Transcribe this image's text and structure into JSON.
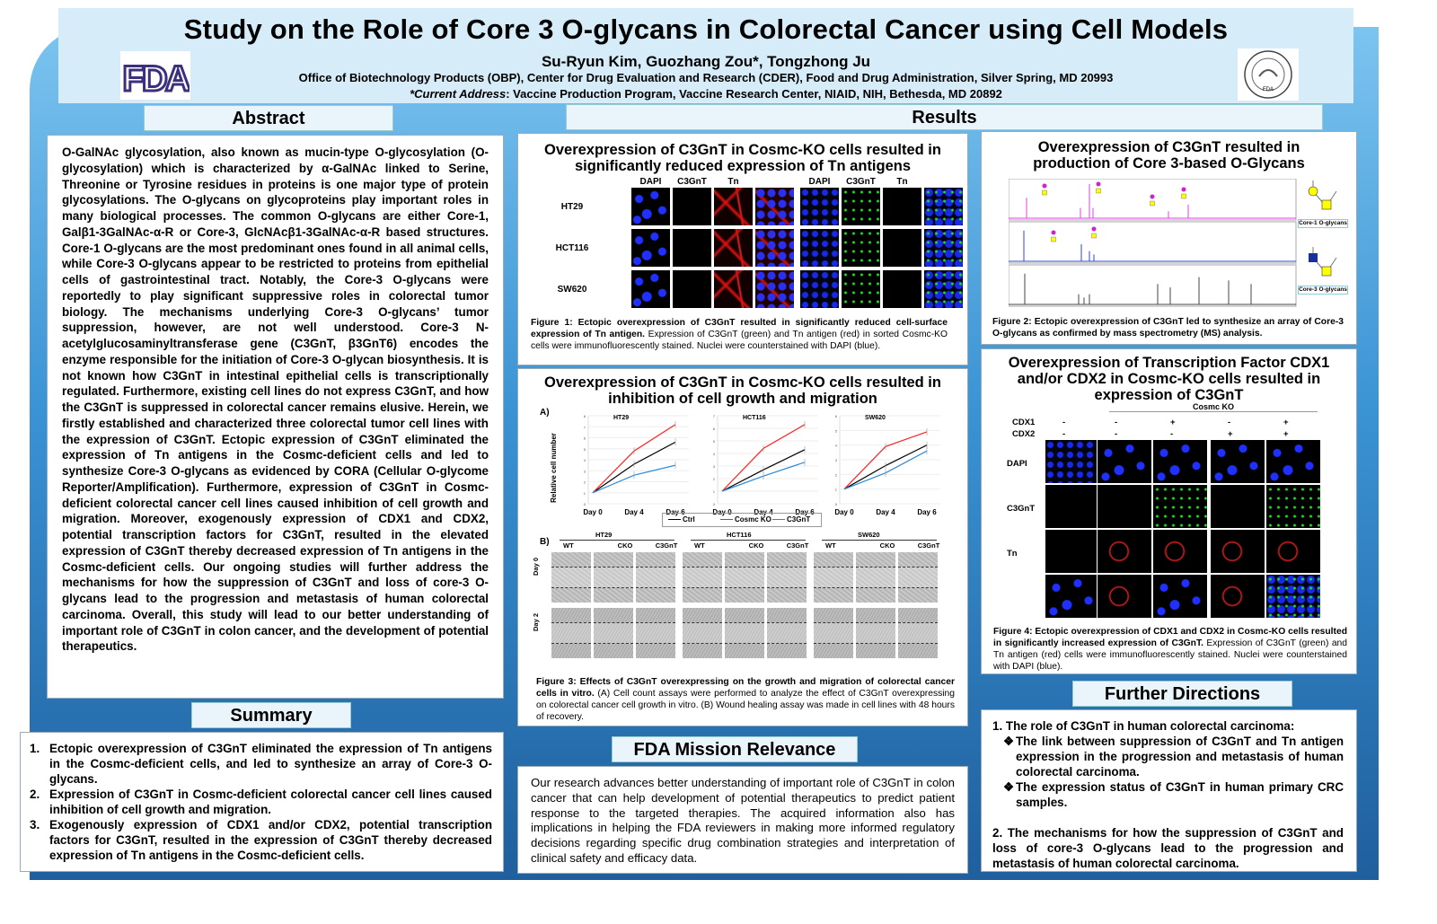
{
  "header": {
    "title": "Study on the Role of Core 3 O-glycans in Colorectal Cancer using Cell Models",
    "authors": "Su-Ryun Kim, Guozhang Zou*, Tongzhong Ju",
    "affiliation": "Office of Biotechnology Products (OBP), Center for Drug Evaluation and Research (CDER), Food and Drug Administration,  Silver Spring, MD 20993",
    "current_address_label": "*Current Address",
    "current_address": ": Vaccine Production Program, Vaccine Research Center, NIAID, NIH, Bethesda, MD 20892",
    "logo_text": "FDA",
    "seal_text": "FDA"
  },
  "abstract": {
    "heading": "Abstract",
    "text": "O-GalNAc glycosylation, also known as mucin-type O-glycosylation (O-glycosylation) which is characterized by α-GalNAc linked to Serine, Threonine or Tyrosine residues in proteins is one major type of protein glycosylations. The O-glycans on glycoproteins play important roles in many biological processes. The common O-glycans are either Core-1, Galβ1-3GalNAc-α-R or Core-3, GlcNAcβ1-3GalNAc-α-R based structures. Core-1 O-glycans are the most predominant ones found in all animal cells, while Core-3 O-glycans appear to be restricted to proteins from epithelial cells of gastrointestinal tract. Notably, the Core-3 O-glycans were reportedly to play significant suppressive roles in colorectal tumor biology. The mechanisms underlying Core-3 O-glycans’ tumor suppression, however, are not well understood. Core-3 N-acetylglucosaminyltransferase gene (C3GnT, β3GnT6) encodes the enzyme responsible for the initiation of Core-3 O-glycan biosynthesis. It is not known how C3GnT in intestinal epithelial cells is transcriptionally regulated. Furthermore, existing cell lines do not express C3GnT, and how the C3GnT is suppressed in colorectal cancer remains elusive. Herein, we firstly established and characterized three colorectal tumor cell lines with the expression of C3GnT. Ectopic expression of C3GnT eliminated the expression of Tn antigens in the Cosmc-deficient cells and led to synthesize Core-3 O-glycans as evidenced by CORA (Cellular O-glycome Reporter/Amplification). Furthermore, expression of C3GnT in Cosmc-deficient colorectal cancer cell lines caused inhibition of cell growth and migration. Moreover, exogenously expression of CDX1 and CDX2, potential transcription factors for C3GnT, resulted in the elevated expression of C3GnT thereby decreased expression of Tn antigens in the Cosmc-deficient cells. Our ongoing studies will further address the mechanisms for how the suppression of C3GnT and loss of core-3 O-glycans lead to the progression and metastasis of human colorectal carcinoma. Overall, this study will lead to our better understanding of important role of C3GnT in colon cancer, and the development of potential therapeutics."
  },
  "summary": {
    "heading": "Summary",
    "items": [
      "Ectopic overexpression of C3GnT eliminated the expression of Tn antigens in the Cosmc-deficient cells, and led to synthesize an array of Core-3 O-glycans.",
      "Expression of C3GnT in Cosmc-deficient colorectal cancer cell lines caused inhibition of cell growth and migration.",
      "Exogenously expression of CDX1 and/or CDX2, potential transcription factors for C3GnT, resulted in the expression of C3GnT thereby decreased expression of Tn antigens in the Cosmc-deficient cells."
    ]
  },
  "results": {
    "heading": "Results"
  },
  "fig1": {
    "title": "Overexpression of C3GnT in Cosmc-KO cells resulted in significantly reduced expression of Tn antigens",
    "col_labels": [
      "DAPI",
      "C3GnT",
      "Tn",
      "",
      "DAPI",
      "C3GnT",
      "Tn",
      ""
    ],
    "row_labels": [
      "HT29",
      "HCT116",
      "SW620"
    ],
    "caption_bold": "Figure 1: Ectopic overexpression of C3GnT resulted in significantly reduced cell-surface expression of Tn antigen.",
    "caption": " Expression of C3GnT (green) and Tn antigen (red) in sorted Cosmc-KO cells were immunofluorescently stained. Nuclei were counterstained with DAPI (blue)."
  },
  "fig2": {
    "title": "Overexpression of C3GnT resulted in production of Core 3-based O-Glycans",
    "core1_label": "Core-1 O-glycans",
    "core3_label": "Core-3 O-glycans",
    "caption_bold": "Figure 2: Ectopic overexpression of C3GnT led to synthesize an array of Core-3 O-glycans as confirmed by mass spectrometry (MS) analysis."
  },
  "fig3": {
    "title": "Overexpression of C3GnT in Cosmc-KO cells resulted in inhibition of cell growth and migration",
    "panel_a": "A)",
    "panel_b": "B)",
    "well_cols": [
      "WT",
      "CKO",
      "C3GnT"
    ],
    "well_rows": [
      "Day 0",
      "Day 2"
    ],
    "caption_bold": "Figure 3: Effects of C3GnT overexpressing on the growth and migration of colorectal cancer cells in vitro.",
    "caption": " (A) Cell count assays were performed to analyze the effect of C3GnT overexpressing on colorectal cancer cell growth in vitro. (B) Wound healing assay was made in cell lines with 48 hours of recovery."
  },
  "chart_data": [
    {
      "type": "line",
      "title": "HT29",
      "ylabel": "Relative cell number",
      "categories": [
        "Day 0",
        "Day 4",
        "Day 6"
      ],
      "ylim": [
        0,
        8
      ],
      "series": [
        {
          "name": "Ctrl",
          "color": "#000000",
          "values": [
            1,
            3.6,
            5.6
          ]
        },
        {
          "name": "Cosmc KO",
          "color": "#ff2020",
          "values": [
            1,
            4.8,
            7.2
          ]
        },
        {
          "name": "C3GnT",
          "color": "#2a8ad8",
          "values": [
            1,
            2.6,
            3.5
          ]
        }
      ]
    },
    {
      "type": "line",
      "title": "HCT116",
      "categories": [
        "Day 0",
        "Day 4",
        "Day 6"
      ],
      "ylim": [
        0,
        7
      ],
      "series": [
        {
          "name": "Ctrl",
          "color": "#000000",
          "values": [
            1,
            2.7,
            4.3
          ]
        },
        {
          "name": "Cosmc KO",
          "color": "#ff2020",
          "values": [
            1,
            4.4,
            6.3
          ]
        },
        {
          "name": "C3GnT",
          "color": "#2a8ad8",
          "values": [
            1,
            2.2,
            3.3
          ]
        }
      ]
    },
    {
      "type": "line",
      "title": "SW620",
      "categories": [
        "Day 0",
        "Day 4",
        "Day 6"
      ],
      "ylim": [
        0,
        6
      ],
      "series": [
        {
          "name": "Ctrl",
          "color": "#000000",
          "values": [
            1,
            2.6,
            4.0
          ]
        },
        {
          "name": "Cosmc KO",
          "color": "#ff2020",
          "values": [
            1,
            3.9,
            4.9
          ]
        },
        {
          "name": "C3GnT",
          "color": "#2a8ad8",
          "values": [
            1,
            2.1,
            3.6
          ]
        }
      ]
    }
  ],
  "legend": [
    "Ctrl",
    "Cosmc KO",
    "C3GnT"
  ],
  "fig4": {
    "title": "Overexpression of Transcription Factor CDX1 and/or  CDX2 in Cosmc-KO cells resulted in expression of C3GnT",
    "group_label": "Cosmc KO",
    "cdx1": [
      "CDX1",
      "-",
      "-",
      "+",
      "-",
      "+"
    ],
    "cdx2": [
      "CDX2",
      "-",
      "-",
      "-",
      "+",
      "+"
    ],
    "row_labels": [
      "DAPI",
      "C3GnT",
      "Tn",
      ""
    ],
    "caption_bold": "Figure 4: Ectopic overexpression of CDX1 and CDX2 in Cosmc-KO cells resulted in significantly increased expression of C3GnT.",
    "caption": " Expression of C3GnT (green) and Tn antigen (red) cells were immunofluorescently stained. Nuclei were counterstained with DAPI (blue)."
  },
  "mission": {
    "heading": "FDA Mission Relevance",
    "text": "Our research advances better understanding of important role of C3GnT in colon cancer that can help development of potential therapeutics to predict patient response to the targeted therapies. The acquired information also has implications in helping the FDA reviewers in making more informed regulatory decisions regarding specific drug combination strategies and interpretation of clinical safety and efficacy data."
  },
  "further": {
    "heading": "Further Directions",
    "item1": "1. The role of C3GnT in human colorectal carcinoma:",
    "sub1": "The link between suppression of C3GnT and Tn antigen expression in the progression and metastasis of human colorectal carcinoma.",
    "sub2": "The expression status of C3GnT in human primary CRC samples.",
    "item2": "2. The mechanisms for how the suppression of C3GnT and loss of core-3 O-glycans lead to the progression and metastasis of human colorectal carcinoma."
  },
  "colors": {
    "header_bg": "#d6ecf8",
    "poster_blue": "#3a93d3",
    "dapi": "#2030ff",
    "c3gnt": "#22dd22",
    "tn": "#dd1111"
  }
}
